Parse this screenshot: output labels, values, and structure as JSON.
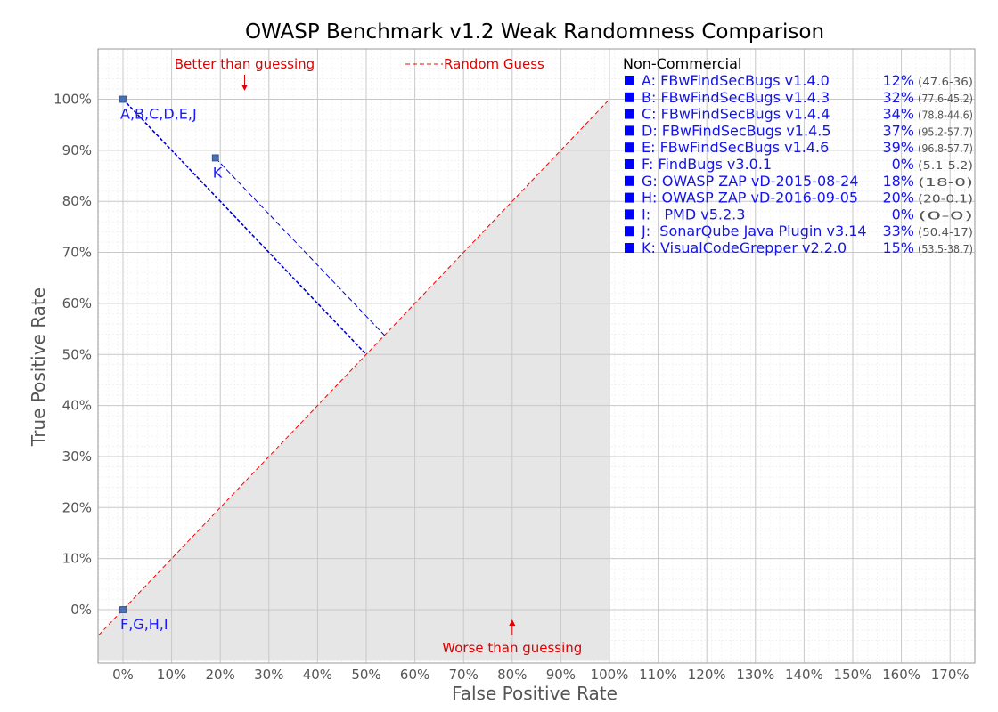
{
  "chart_data": {
    "type": "scatter",
    "title": "OWASP Benchmark v1.2 Weak Randomness Comparison",
    "xlabel": "False Positive Rate",
    "ylabel": "True Positive Rate",
    "xlim": [
      -5,
      175
    ],
    "ylim": [
      -10,
      110
    ],
    "x_ticks": [
      "0%",
      "10%",
      "20%",
      "30%",
      "40%",
      "50%",
      "60%",
      "70%",
      "80%",
      "90%",
      "100%",
      "110%",
      "120%",
      "130%",
      "140%",
      "150%",
      "160%",
      "170%"
    ],
    "y_ticks": [
      "0%",
      "10%",
      "20%",
      "30%",
      "40%",
      "50%",
      "60%",
      "70%",
      "80%",
      "90%",
      "100%"
    ],
    "grid": true,
    "guess_line_label": "Random Guess",
    "annotations": {
      "better": "Better than guessing",
      "worse": "Worse than guessing"
    },
    "points": [
      {
        "label": "A,B,C,D,E,J",
        "x": 0,
        "y": 100
      },
      {
        "label": "K",
        "x": 19,
        "y": 88.5
      },
      {
        "label": "F,G,H,I",
        "x": 0,
        "y": 0
      }
    ],
    "legend": {
      "heading": "Non-Commercial",
      "position": "right",
      "entries": [
        {
          "name": "A: FBwFindSecBugs v1.4.0",
          "score": "12%",
          "range": "(47.6-36)"
        },
        {
          "name": "B: FBwFindSecBugs v1.4.3",
          "score": "32%",
          "range": "(77.6-45.2)"
        },
        {
          "name": "C: FBwFindSecBugs v1.4.4",
          "score": "34%",
          "range": "(78.8-44.6)"
        },
        {
          "name": "D: FBwFindSecBugs v1.4.5",
          "score": "37%",
          "range": "(95.2-57.7)"
        },
        {
          "name": "E: FBwFindSecBugs v1.4.6",
          "score": "39%",
          "range": "(96.8-57.7)"
        },
        {
          "name": "F: FindBugs v3.0.1",
          "score": "0%",
          "range": "(5.1-5.2)"
        },
        {
          "name": "G: OWASP ZAP vD-2015-08-24",
          "score": "18%",
          "range": "(18-0)"
        },
        {
          "name": "H: OWASP ZAP vD-2016-09-05",
          "score": "20%",
          "range": "(20-0.1)"
        },
        {
          "name": "I:   PMD v5.2.3",
          "score": "0%",
          "range": "(0-0)"
        },
        {
          "name": "J:  SonarQube Java Plugin v3.14",
          "score": "33%",
          "range": "(50.4-17)"
        },
        {
          "name": "K: VisualCodeGrepper v2.2.0",
          "score": "15%",
          "range": "(53.5-38.7)"
        }
      ]
    },
    "colors": {
      "point": "#4a6fb5",
      "guess_line": "#ff0000",
      "projection": "#0000cc",
      "worse_region": "#e6e6e6",
      "annotation": "#e00000",
      "legend_marker": "#0000ff"
    }
  }
}
